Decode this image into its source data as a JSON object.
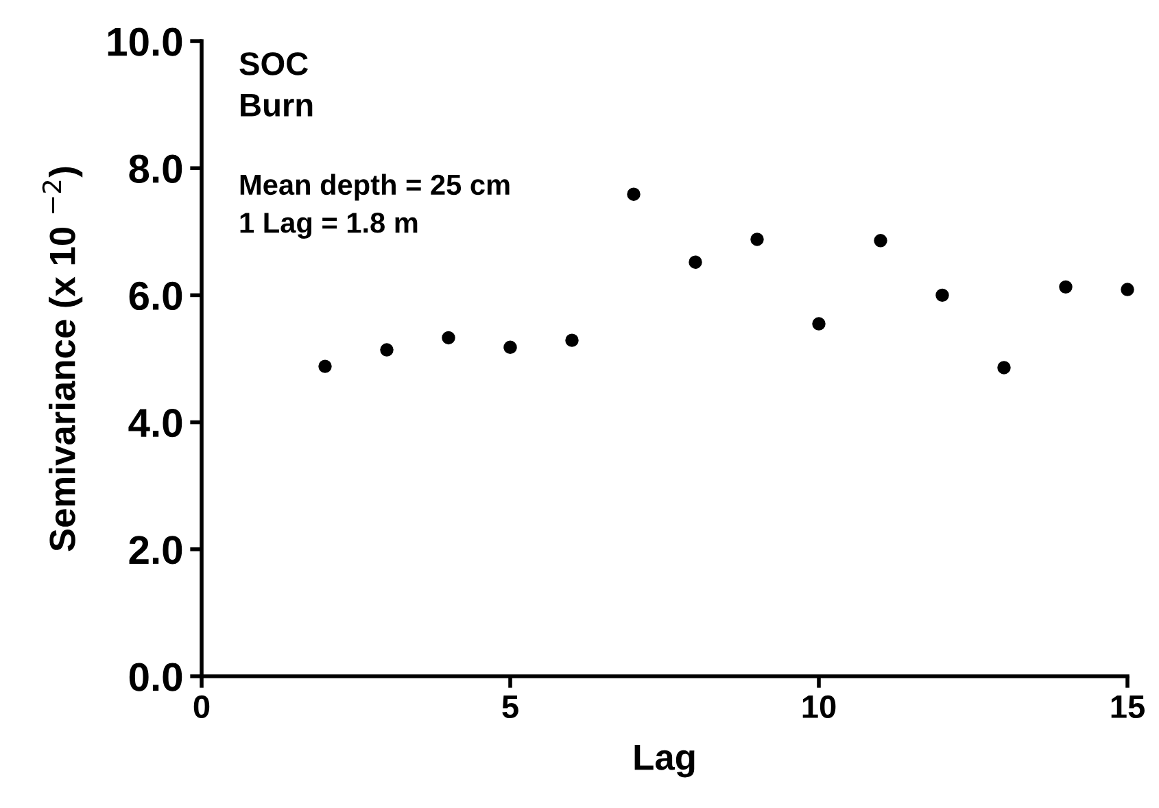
{
  "chart_data": {
    "type": "scatter",
    "xlabel": "Lag",
    "ylabel": "Semivariance (x 10 $^{−2}$)",
    "x": [
      2,
      3,
      4,
      5,
      6,
      7,
      8,
      9,
      10,
      11,
      12,
      13,
      14,
      15
    ],
    "series": [
      {
        "color": "#000000",
        "values": [
          4.88,
          5.14,
          5.33,
          5.18,
          5.29,
          7.59,
          6.52,
          6.88,
          5.55,
          6.86,
          6.0,
          4.86,
          6.13,
          6.09
        ]
      }
    ],
    "xlim": [
      0,
      15
    ],
    "ylim": [
      0,
      10
    ],
    "xticks": [
      0,
      5,
      10,
      15
    ],
    "yticks": [
      {
        "value": 0,
        "label": "0.0"
      },
      {
        "value": 2,
        "label": "2.0"
      },
      {
        "value": 4,
        "label": "4.0"
      },
      {
        "value": 6,
        "label": "6.0"
      },
      {
        "value": 8,
        "label": "8.0"
      },
      {
        "value": 10,
        "label": "10.0"
      }
    ],
    "marker": "circle",
    "grid": false,
    "legend": false,
    "annotations": [
      "SOC",
      "Burn",
      "Mean depth = 25 cm",
      "1 Lag = 1.8 m"
    ]
  }
}
